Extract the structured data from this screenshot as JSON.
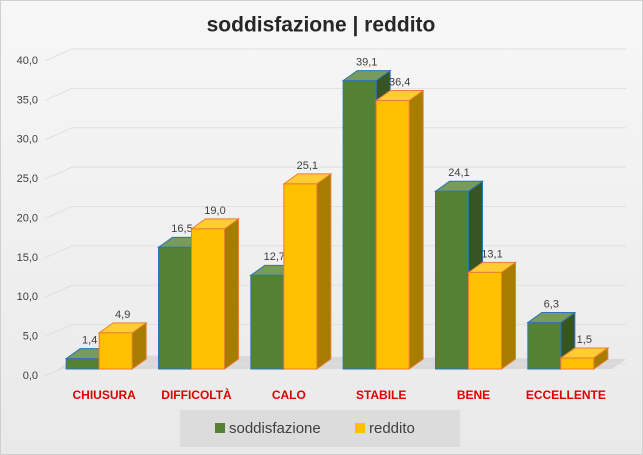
{
  "chart_data": {
    "type": "bar3d",
    "title": "soddisfazione | reddito",
    "categories": [
      "CHIUSURA",
      "DIFFICOLTÀ",
      "CALO",
      "STABILE",
      "BENE",
      "ECCELLENTE"
    ],
    "series": [
      {
        "name": "soddisfazione",
        "color": "#548235",
        "values": [
          1.4,
          16.5,
          12.7,
          39.1,
          24.1,
          6.3
        ],
        "value_labels": [
          "1,4",
          "16,5",
          "12,7",
          "39,1",
          "24,1",
          "6,3"
        ]
      },
      {
        "name": "reddito",
        "color": "#ffc000",
        "values": [
          4.9,
          19.0,
          25.1,
          36.4,
          13.1,
          1.5
        ],
        "value_labels": [
          "4,9",
          "19,0",
          "25,1",
          "36,4",
          "13,1",
          "1,5"
        ]
      }
    ],
    "ylim": [
      0,
      40
    ],
    "yticks": [
      {
        "value": 0,
        "label": "0,0"
      },
      {
        "value": 5,
        "label": "5,0"
      },
      {
        "value": 10,
        "label": "10,0"
      },
      {
        "value": 15,
        "label": "15,0"
      },
      {
        "value": 20,
        "label": "20,0"
      },
      {
        "value": 25,
        "label": "25,0"
      },
      {
        "value": 30,
        "label": "30,0"
      },
      {
        "value": 35,
        "label": "35,0"
      },
      {
        "value": 40,
        "label": "40,0"
      }
    ],
    "grid": true,
    "legend": "bottom"
  }
}
